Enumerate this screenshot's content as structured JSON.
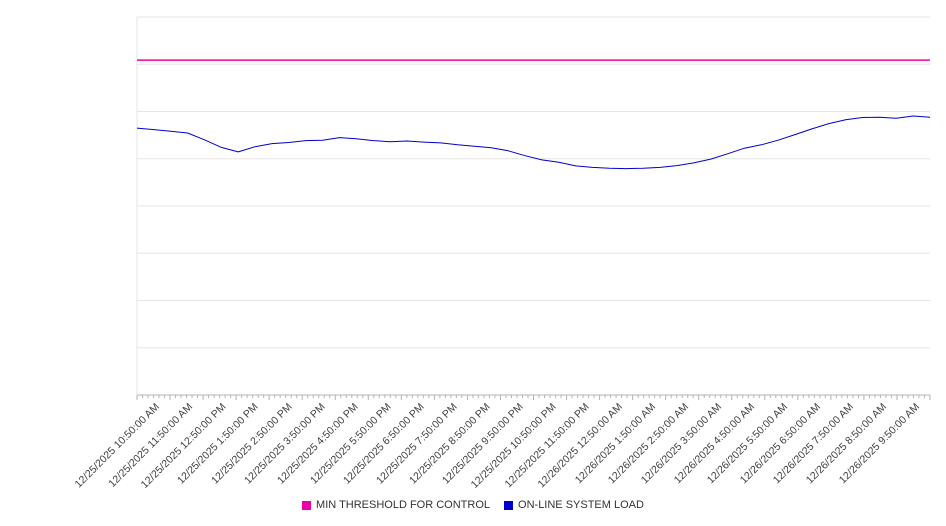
{
  "chart_data": {
    "type": "line",
    "title": "",
    "xlabel": "",
    "ylabel": "",
    "ylim": [
      0,
      100
    ],
    "y_gridline_divisions": 8,
    "grid": true,
    "legend_position": "bottom",
    "x_labels": [
      "12/25/2025 10:50:00 AM",
      "12/25/2025 11:50:00 AM",
      "12/25/2025 12:50:00 PM",
      "12/25/2025 1:50:00 PM",
      "12/25/2025 2:50:00 PM",
      "12/25/2025 3:50:00 PM",
      "12/25/2025 4:50:00 PM",
      "12/25/2025 5:50:00 PM",
      "12/25/2025 6:50:00 PM",
      "12/25/2025 7:50:00 PM",
      "12/25/2025 8:50:00 PM",
      "12/25/2025 9:50:00 PM",
      "12/25/2025 10:50:00 PM",
      "12/25/2025 11:50:00 PM",
      "12/26/2025 12:50:00 AM",
      "12/26/2025 1:50:00 AM",
      "12/26/2025 2:50:00 AM",
      "12/26/2025 3:50:00 AM",
      "12/26/2025 4:50:00 AM",
      "12/26/2025 5:50:00 AM",
      "12/26/2025 6:50:00 AM",
      "12/26/2025 7:50:00 AM",
      "12/26/2025 8:50:00 AM",
      "12/26/2025 9:50:00 AM"
    ],
    "series": [
      {
        "name": "MIN THRESHOLD FOR CONTROL",
        "type": "constant-line",
        "color": "#ee00a8",
        "value": 88.6
      },
      {
        "name": "ON-LINE SYSTEM LOAD",
        "type": "line",
        "color": "#0000cc",
        "x_step_minutes": 30,
        "values": [
          70.6,
          70.2,
          69.8,
          69.3,
          67.5,
          65.5,
          64.3,
          65.7,
          66.5,
          66.8,
          67.3,
          67.4,
          68.1,
          67.8,
          67.3,
          67.0,
          67.2,
          66.9,
          66.7,
          66.2,
          65.8,
          65.4,
          64.6,
          63.3,
          62.2,
          61.6,
          60.6,
          60.2,
          60.0,
          59.9,
          60.0,
          60.2,
          60.7,
          61.4,
          62.4,
          63.8,
          65.3,
          66.2,
          67.4,
          68.9,
          70.4,
          71.8,
          72.8,
          73.4,
          73.5,
          73.2,
          73.8,
          73.5
        ]
      }
    ]
  },
  "colors": {
    "background": "#ffffff",
    "gridline": "#e6e6e6",
    "axis": "#b3b3b3",
    "tick": "#b3b3b3",
    "label_text": "#3f3f3f",
    "legend_text": "#333333"
  }
}
